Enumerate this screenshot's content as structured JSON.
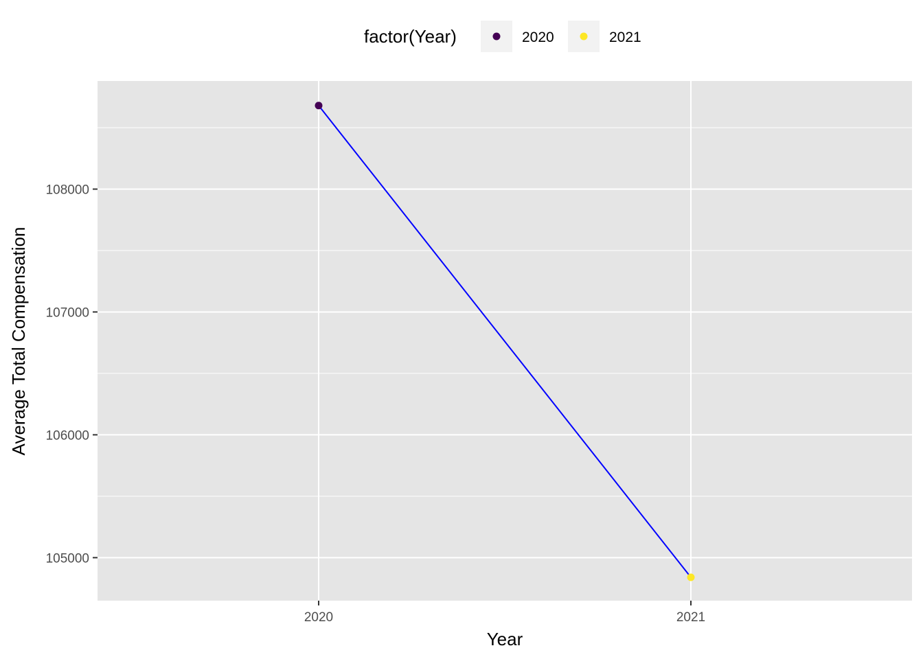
{
  "chart_data": {
    "type": "line",
    "xlabel": "Year",
    "ylabel": "Average Total Compensation",
    "x": [
      "2020",
      "2021"
    ],
    "y": [
      108680,
      104840
    ],
    "ylim": [
      104650,
      108880
    ],
    "yticks": [
      105000,
      106000,
      107000,
      108000
    ],
    "ytick_labels": [
      "105000",
      "106000",
      "107000",
      "108000"
    ],
    "xtick_labels": [
      "2020",
      "2021"
    ],
    "line_color": "#0000ff",
    "panel_color": "#e5e5e5",
    "grid": true,
    "legend": {
      "title": "factor(Year)",
      "placement": "top",
      "entries": [
        {
          "label": "2020",
          "color": "#440154"
        },
        {
          "label": "2021",
          "color": "#fde725"
        }
      ]
    },
    "points": [
      {
        "x": "2020",
        "y": 108680,
        "color": "#440154"
      },
      {
        "x": "2021",
        "y": 104840,
        "color": "#fde725"
      }
    ]
  }
}
